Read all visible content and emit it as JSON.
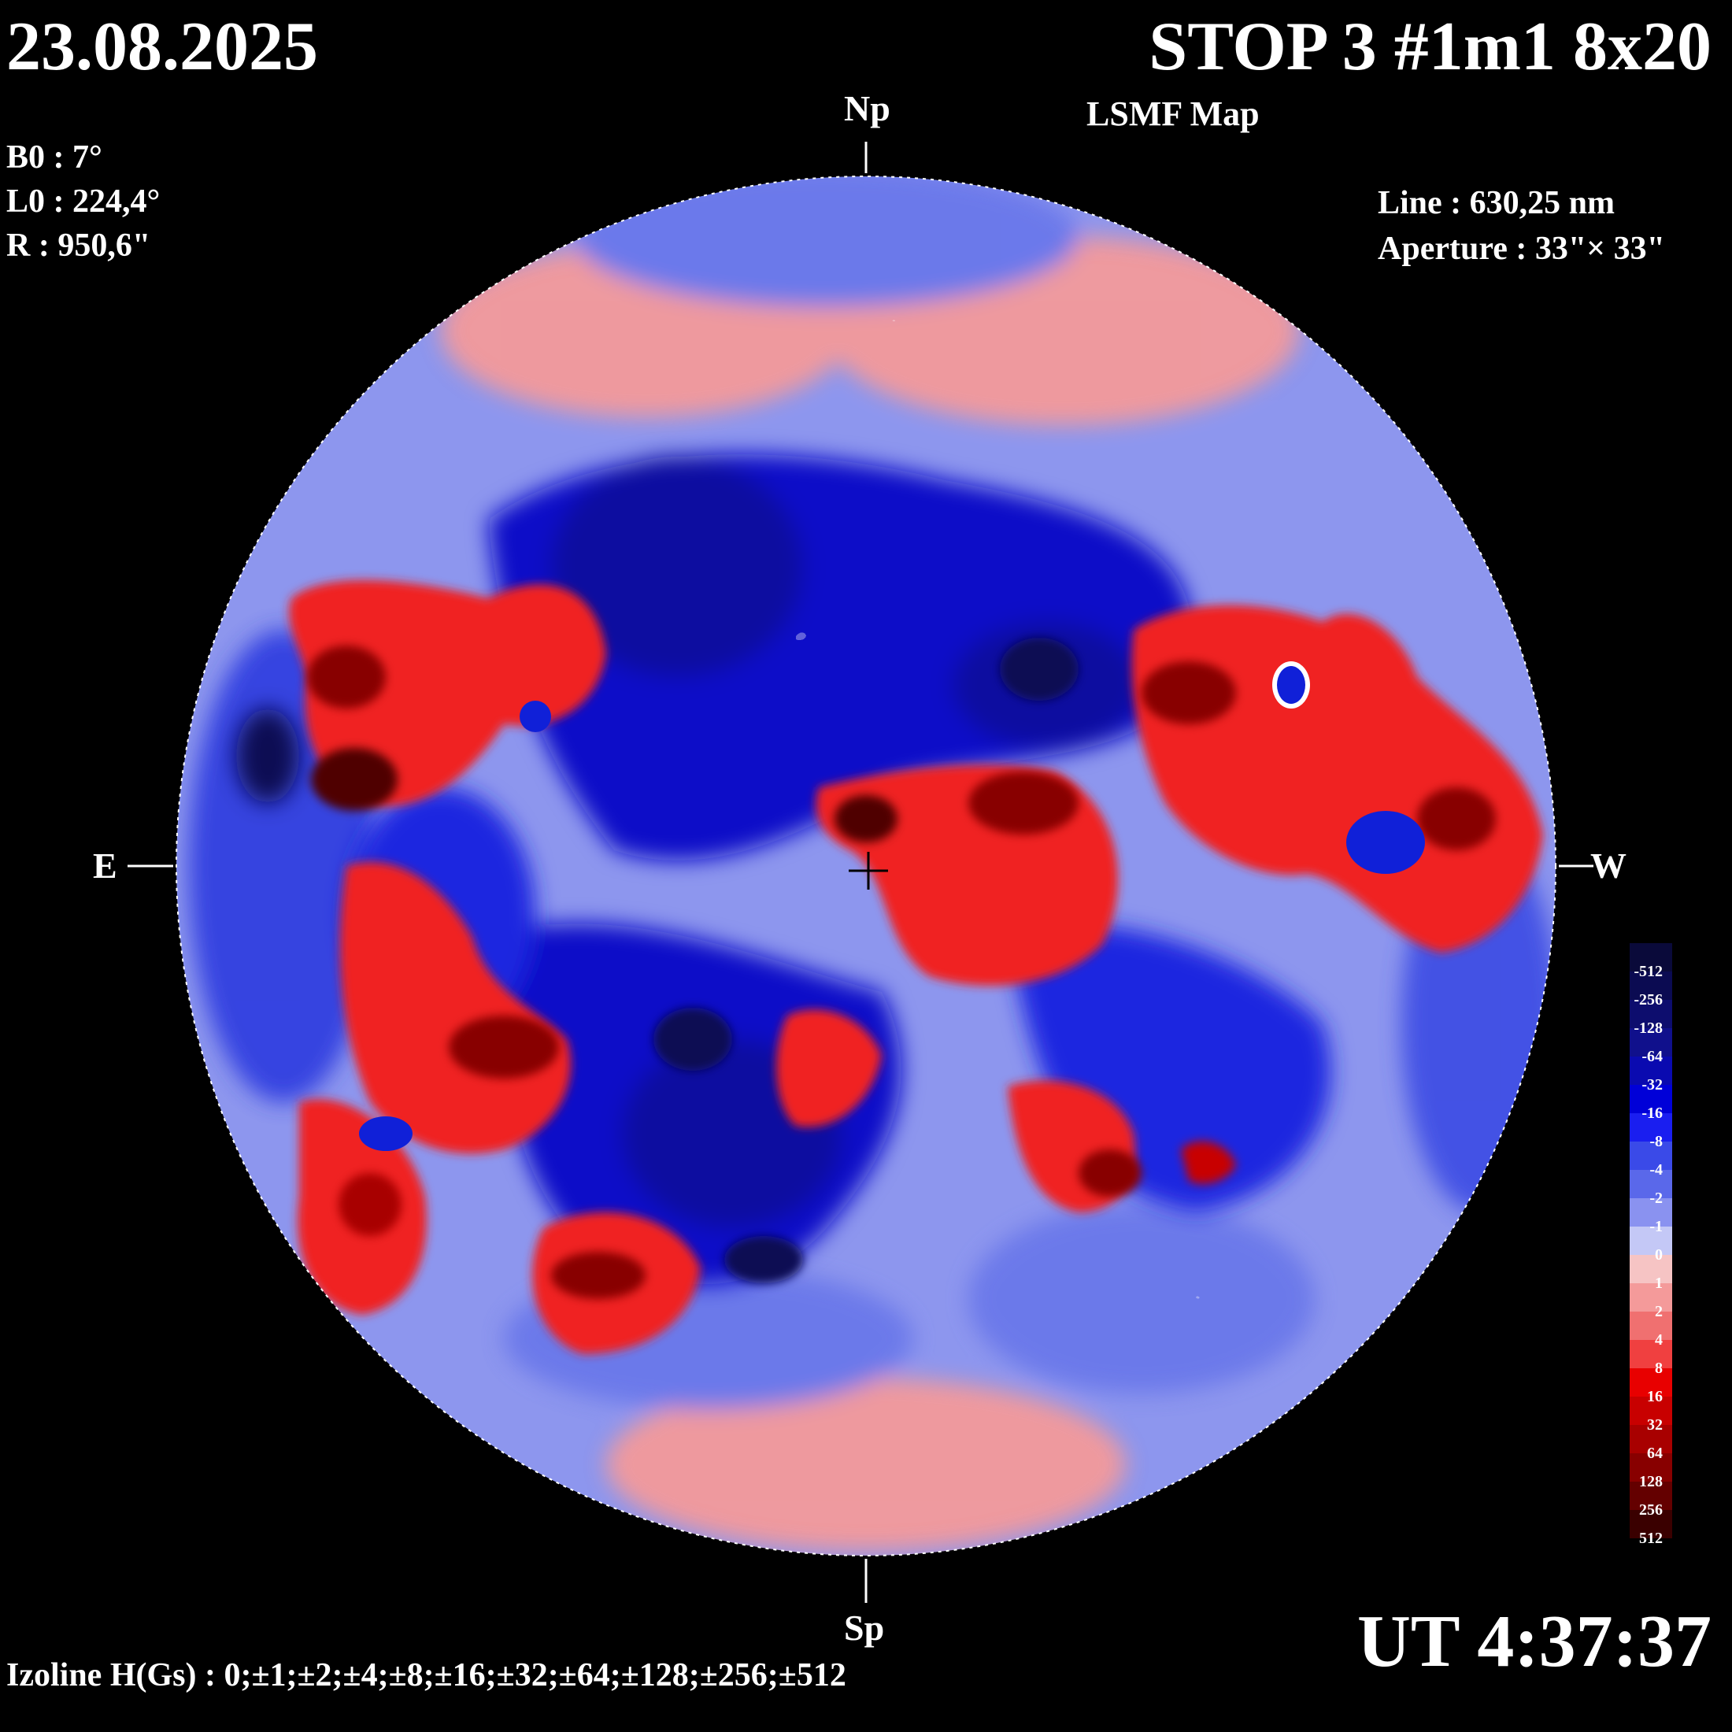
{
  "header": {
    "date": "23.08.2025",
    "title": "STOP 3 #1m1 8x20",
    "subtitle": "LSMF  Map"
  },
  "params": {
    "b0": "B0 : 7°",
    "l0": "L0 : 224,4°",
    "r": "R  : 950,6\""
  },
  "instrument": {
    "line": "Line :  630,25 nm",
    "aperture": "Aperture : 33\"× 33\""
  },
  "directions": {
    "north": "Np",
    "south": "Sp",
    "east": "E",
    "west": "W"
  },
  "footer": {
    "ut": "UT 4:37:37",
    "izoline": "Izoline H(Gs) : 0;±1;±2;±4;±8;±16;±32;±64;±128;±256;±512"
  },
  "colorscale": {
    "labels": [
      "-512",
      "-256",
      "-128",
      "-64",
      "-32",
      "-16",
      "-8",
      "-4",
      "-2",
      "-1",
      "0",
      "1",
      "2",
      "4",
      "8",
      "16",
      "32",
      "64",
      "128",
      "256",
      "512"
    ],
    "colors": [
      "#0a0a3a",
      "#0b0b52",
      "#0d0d6e",
      "#10108c",
      "#0a0ab0",
      "#0000d8",
      "#1a1ef0",
      "#3a4ae8",
      "#5a68ea",
      "#8a92f0",
      "#c4c8f6",
      "#f6c4c4",
      "#f49a9a",
      "#f07070",
      "#f04040",
      "#e80000",
      "#c80000",
      "#a80000",
      "#880000",
      "#640000",
      "#3a0000"
    ]
  },
  "map": {
    "negative_color": "#1020d8",
    "positive_color": "#e81818"
  }
}
